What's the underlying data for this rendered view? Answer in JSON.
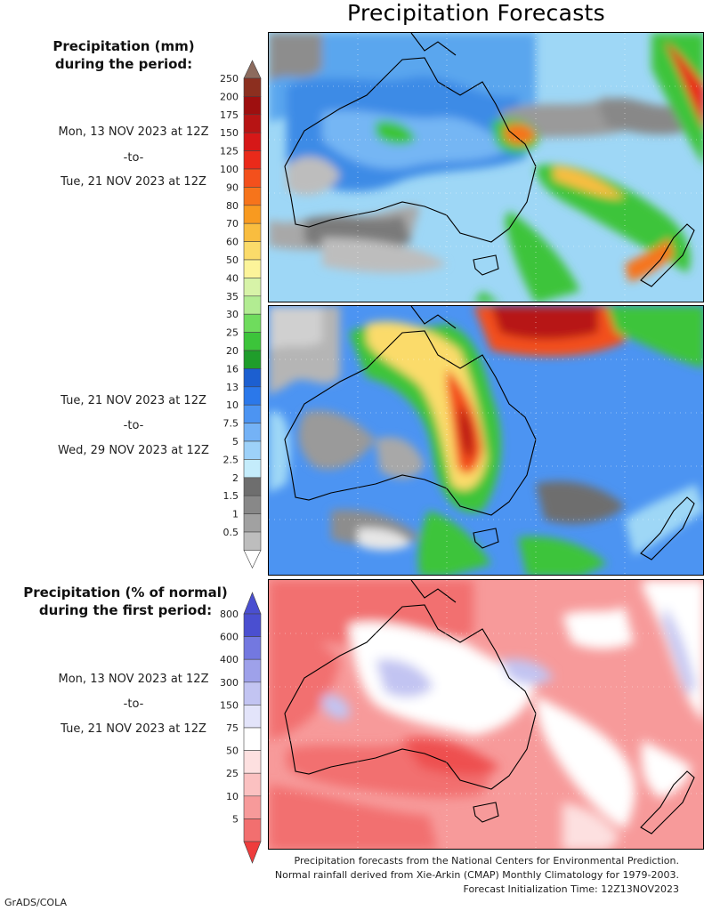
{
  "title": "Precipitation Forecasts",
  "mm_legend": {
    "header_line1": "Precipitation (mm)",
    "header_line2": "during the period:",
    "levels": [
      {
        "label": "250",
        "color": "#8c2f1f"
      },
      {
        "label": "200",
        "color": "#9e0f0f"
      },
      {
        "label": "175",
        "color": "#b71414"
      },
      {
        "label": "150",
        "color": "#d61818"
      },
      {
        "label": "125",
        "color": "#ea2a1a"
      },
      {
        "label": "100",
        "color": "#f3501c"
      },
      {
        "label": "90",
        "color": "#f6741b"
      },
      {
        "label": "80",
        "color": "#f89a20"
      },
      {
        "label": "70",
        "color": "#f9bd3f"
      },
      {
        "label": "60",
        "color": "#fbdb6a"
      },
      {
        "label": "50",
        "color": "#fcf49a"
      },
      {
        "label": "40",
        "color": "#d7f3a8"
      },
      {
        "label": "35",
        "color": "#b2ec92"
      },
      {
        "label": "30",
        "color": "#6fdc5d"
      },
      {
        "label": "25",
        "color": "#3cc43a"
      },
      {
        "label": "20",
        "color": "#1f9d2b"
      },
      {
        "label": "16",
        "color": "#1c5fd0"
      },
      {
        "label": "13",
        "color": "#2b78ea"
      },
      {
        "label": "10",
        "color": "#4c94f2"
      },
      {
        "label": "7.5",
        "color": "#74b2f6"
      },
      {
        "label": "5",
        "color": "#9dd1f9"
      },
      {
        "label": "2.5",
        "color": "#c4ecfb"
      },
      {
        "label": "2",
        "color": "#6e6e6e"
      },
      {
        "label": "1.5",
        "color": "#888888"
      },
      {
        "label": "1",
        "color": "#a1a1a1"
      },
      {
        "label": "0.5",
        "color": "#bdbdbd"
      }
    ]
  },
  "period1": {
    "start": "Mon, 13 NOV 2023 at 12Z",
    "to": "-to-",
    "end": "Tue, 21 NOV 2023 at 12Z"
  },
  "period2": {
    "start": "Tue, 21 NOV 2023 at 12Z",
    "to": "-to-",
    "end": "Wed, 29 NOV 2023 at 12Z"
  },
  "pct_legend": {
    "header_line1": "Precipitation (% of normal)",
    "header_line2": "during the first period:",
    "levels": [
      {
        "label": "800",
        "color": "#4a4fd0"
      },
      {
        "label": "600",
        "color": "#7378e0"
      },
      {
        "label": "400",
        "color": "#9ea1ea"
      },
      {
        "label": "300",
        "color": "#c2c4f2"
      },
      {
        "label": "150",
        "color": "#e3e4fa"
      },
      {
        "label": "75",
        "color": "#ffffff"
      },
      {
        "label": "50",
        "color": "#fde0e0"
      },
      {
        "label": "25",
        "color": "#fbc1c1"
      },
      {
        "label": "10",
        "color": "#f79a9a"
      },
      {
        "label": "5",
        "color": "#f26f6f"
      }
    ],
    "top_arrow_color": "#4a4fd0",
    "bottom_arrow_color": "#ee3c3c"
  },
  "period3": {
    "start": "Mon, 13 NOV 2023 at 12Z",
    "to": "-to-",
    "end": "Tue, 21 NOV 2023 at 12Z"
  },
  "footer": {
    "line1": "Precipitation forecasts from the National Centers for Environmental Prediction.",
    "line2": "Normal rainfall derived from Xie-Arkin (CMAP) Monthly Climatology for 1979-2003.",
    "line3": "Forecast Initialization Time: 12Z13NOV2023"
  },
  "credit": "GrADS/COLA"
}
